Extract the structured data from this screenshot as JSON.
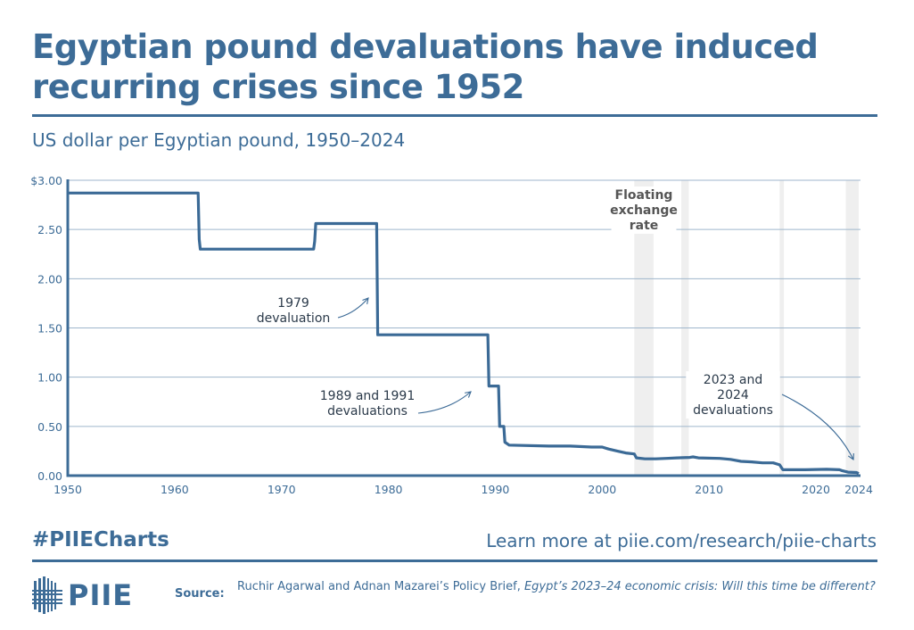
{
  "header": {
    "title": "Egyptian pound devaluations have induced recurring crises since 1952",
    "subtitle": "US dollar per Egyptian pound, 1950–2024"
  },
  "footer": {
    "hashtag": "#PIIECharts",
    "learn_more": "Learn more at piie.com/research/piie-charts",
    "logo_text": "PIIE",
    "source_label": "Source:",
    "source_plain": "Ruchir Agarwal and Adnan Mazarei’s Policy Brief, ",
    "source_italic": "Egypt’s 2023–24 economic crisis: Will this time be different?"
  },
  "colors": {
    "primary": "#3d6c97",
    "line": "#3b6a96",
    "grid": "#9fb6cc",
    "band": "#efefef",
    "annotation_text": "#2b3a4a",
    "band_label": "#555555"
  },
  "chart_data": {
    "type": "line",
    "title": "US dollar per Egyptian pound, 1950–2024",
    "xlabel": "",
    "ylabel": "",
    "xlim": [
      1950,
      2024
    ],
    "ylim": [
      0,
      3.0
    ],
    "grid": true,
    "y_ticks": [
      {
        "value": 3.0,
        "label": "$3.00"
      },
      {
        "value": 2.5,
        "label": "2.50"
      },
      {
        "value": 2.0,
        "label": "2.00"
      },
      {
        "value": 1.5,
        "label": "1.50"
      },
      {
        "value": 1.0,
        "label": "1.00"
      },
      {
        "value": 0.5,
        "label": "0.50"
      },
      {
        "value": 0.0,
        "label": "0.00"
      }
    ],
    "x_ticks": [
      {
        "value": 1950,
        "label": "1950"
      },
      {
        "value": 1960,
        "label": "1960"
      },
      {
        "value": 1970,
        "label": "1970"
      },
      {
        "value": 1980,
        "label": "1980"
      },
      {
        "value": 1990,
        "label": "1990"
      },
      {
        "value": 2000,
        "label": "2000"
      },
      {
        "value": 2010,
        "label": "2010"
      },
      {
        "value": 2020,
        "label": "2020"
      },
      {
        "value": 2024,
        "label": "2024"
      }
    ],
    "series": [
      {
        "name": "US dollar per Egyptian pound",
        "points": [
          [
            1950.0,
            2.87
          ],
          [
            1962.2,
            2.87
          ],
          [
            1962.3,
            2.4
          ],
          [
            1962.4,
            2.3
          ],
          [
            1973.0,
            2.3
          ],
          [
            1973.1,
            2.38
          ],
          [
            1973.2,
            2.56
          ],
          [
            1978.9,
            2.56
          ],
          [
            1979.0,
            1.43
          ],
          [
            1989.3,
            1.43
          ],
          [
            1989.4,
            0.91
          ],
          [
            1990.3,
            0.91
          ],
          [
            1990.4,
            0.5
          ],
          [
            1990.8,
            0.5
          ],
          [
            1990.9,
            0.34
          ],
          [
            1991.3,
            0.31
          ],
          [
            1995.0,
            0.3
          ],
          [
            1997.0,
            0.3
          ],
          [
            1999.0,
            0.29
          ],
          [
            2000.0,
            0.29
          ],
          [
            2000.6,
            0.27
          ],
          [
            2001.4,
            0.25
          ],
          [
            2002.2,
            0.23
          ],
          [
            2003.0,
            0.22
          ],
          [
            2003.2,
            0.18
          ],
          [
            2004.0,
            0.17
          ],
          [
            2005.0,
            0.17
          ],
          [
            2006.0,
            0.175
          ],
          [
            2007.0,
            0.18
          ],
          [
            2008.2,
            0.185
          ],
          [
            2008.5,
            0.19
          ],
          [
            2009.0,
            0.18
          ],
          [
            2011.0,
            0.175
          ],
          [
            2012.0,
            0.165
          ],
          [
            2013.0,
            0.145
          ],
          [
            2014.0,
            0.14
          ],
          [
            2015.0,
            0.13
          ],
          [
            2016.0,
            0.13
          ],
          [
            2016.6,
            0.11
          ],
          [
            2016.9,
            0.06
          ],
          [
            2019.0,
            0.06
          ],
          [
            2021.0,
            0.064
          ],
          [
            2022.2,
            0.06
          ],
          [
            2022.4,
            0.052
          ],
          [
            2023.0,
            0.035
          ],
          [
            2023.8,
            0.032
          ],
          [
            2024.0,
            0.021
          ]
        ]
      }
    ],
    "shaded_bands": [
      {
        "start": 2003.0,
        "end": 2004.8,
        "label": "Floating exchange rate"
      },
      {
        "start": 2007.4,
        "end": 2008.1,
        "label": ""
      },
      {
        "start": 2016.6,
        "end": 2017.0,
        "label": ""
      },
      {
        "start": 2022.8,
        "end": 2024.0,
        "label": ""
      }
    ],
    "band_label": [
      "Floating",
      "exchange",
      "rate"
    ],
    "annotations": [
      {
        "lines": [
          "1979",
          "devaluation"
        ],
        "year": 1979
      },
      {
        "lines": [
          "1989 and 1991",
          "devaluations"
        ],
        "year": 1989
      },
      {
        "lines": [
          "2023 and",
          "2024",
          "devaluations"
        ],
        "year": 2024
      }
    ]
  }
}
